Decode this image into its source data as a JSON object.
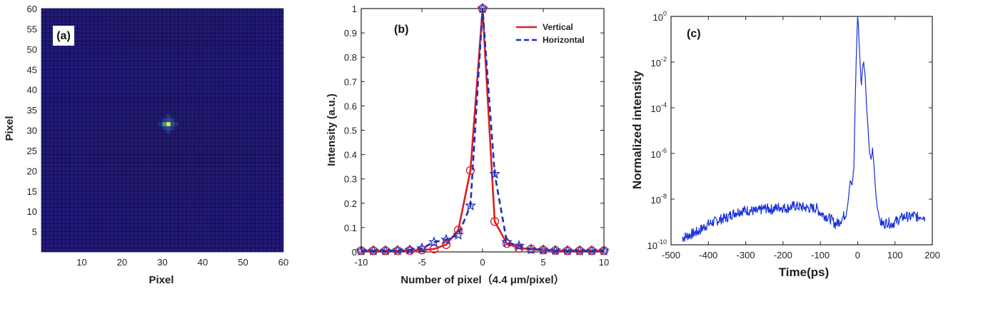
{
  "chart_data": [
    {
      "type": "heatmap",
      "panel_label": "(a)",
      "xlabel": "Pixel",
      "ylabel": "Pixel",
      "xlim": [
        0,
        60
      ],
      "ylim": [
        0,
        60
      ],
      "x_ticks": [
        "10",
        "20",
        "30",
        "40",
        "50",
        "60"
      ],
      "y_ticks": [
        "5",
        "10",
        "15",
        "20",
        "25",
        "30",
        "35",
        "40",
        "45",
        "50",
        "55",
        "60"
      ],
      "grid_size": 60,
      "peak_pixel": [
        32,
        32
      ],
      "colors": {
        "background": "#221a78",
        "grid_line": "#0e0a3a",
        "peak": "#e6ee3a",
        "halo": "#2fa0a6"
      }
    },
    {
      "type": "line",
      "panel_label": "(b)",
      "xlabel": "Number of pixel（4.4 μm/pixel）",
      "ylabel": "Intensity (a.u.)",
      "xlim": [
        -10,
        10
      ],
      "ylim": [
        0,
        1
      ],
      "x_ticks": [
        "-10",
        "-5",
        "0",
        "5",
        "10"
      ],
      "y_ticks": [
        "0",
        "0.1",
        "0.2",
        "0.3",
        "0.4",
        "0.5",
        "0.6",
        "0.7",
        "0.8",
        "0.9",
        "1"
      ],
      "x": [
        -10,
        -9,
        -8,
        -7,
        -6,
        -5,
        -4,
        -3,
        -2,
        -1,
        0,
        1,
        2,
        3,
        4,
        5,
        6,
        7,
        8,
        9,
        10
      ],
      "series": [
        {
          "name": "Vertical",
          "color": "#dd1f1f",
          "style": "solid",
          "marker": "circle",
          "values": [
            0.005,
            0.005,
            0.005,
            0.005,
            0.006,
            0.008,
            0.012,
            0.03,
            0.09,
            0.335,
            1.0,
            0.125,
            0.035,
            0.015,
            0.012,
            0.008,
            0.006,
            0.005,
            0.005,
            0.005,
            0.005
          ]
        },
        {
          "name": "Horizontal",
          "color": "#1f2fb8",
          "style": "dashed",
          "marker": "star",
          "values": [
            0.005,
            0.005,
            0.005,
            0.006,
            0.008,
            0.015,
            0.04,
            0.05,
            0.07,
            0.19,
            1.0,
            0.32,
            0.04,
            0.025,
            0.01,
            0.008,
            0.006,
            0.005,
            0.005,
            0.005,
            0.005
          ]
        }
      ],
      "legend_position": "top-right"
    },
    {
      "type": "line",
      "panel_label": "(c)",
      "xlabel": "Time(ps)",
      "ylabel": "Normalized intensity",
      "xlim": [
        -500,
        200
      ],
      "ylim_log10": [
        -10,
        0
      ],
      "y_scale": "log",
      "x_ticks": [
        "-500",
        "-400",
        "-300",
        "-200",
        "-100",
        "0",
        "100",
        "200"
      ],
      "y_tick_base": "10",
      "y_tick_exponents": [
        "0",
        "-2",
        "-4",
        "-6",
        "-8",
        "-10"
      ],
      "color": "#1530d8",
      "x": [
        -470,
        -455,
        -440,
        -425,
        -410,
        -400,
        -385,
        -370,
        -350,
        -330,
        -310,
        -290,
        -270,
        -250,
        -230,
        -210,
        -190,
        -170,
        -150,
        -130,
        -110,
        -100,
        -90,
        -80,
        -70,
        -60,
        -50,
        -40,
        -30,
        -25,
        -20,
        -15,
        -10,
        -7,
        -4,
        -2,
        0,
        2,
        4,
        7,
        10,
        13,
        16,
        20,
        24,
        28,
        32,
        36,
        40,
        44,
        48,
        52,
        56,
        60,
        70,
        80,
        90,
        100,
        110,
        120,
        130,
        140,
        150,
        160,
        170,
        180
      ],
      "log10_values": [
        -9.7,
        -9.6,
        -9.5,
        -9.4,
        -9.2,
        -9.1,
        -9.0,
        -8.9,
        -8.8,
        -8.6,
        -8.5,
        -8.5,
        -8.55,
        -8.4,
        -8.45,
        -8.35,
        -8.4,
        -8.3,
        -8.35,
        -8.4,
        -8.4,
        -8.6,
        -8.7,
        -8.8,
        -8.9,
        -9.1,
        -9.0,
        -8.8,
        -8.6,
        -8.0,
        -7.2,
        -7.4,
        -6.6,
        -4.0,
        -2.0,
        -0.8,
        0.0,
        -0.4,
        -1.2,
        -2.2,
        -3.0,
        -2.2,
        -2.0,
        -2.6,
        -4.0,
        -5.0,
        -6.0,
        -6.3,
        -5.8,
        -6.6,
        -7.6,
        -8.3,
        -8.6,
        -9.0,
        -9.1,
        -9.0,
        -9.1,
        -9.0,
        -8.9,
        -8.8,
        -8.75,
        -8.8,
        -8.7,
        -8.8,
        -8.7,
        -8.8
      ]
    }
  ]
}
